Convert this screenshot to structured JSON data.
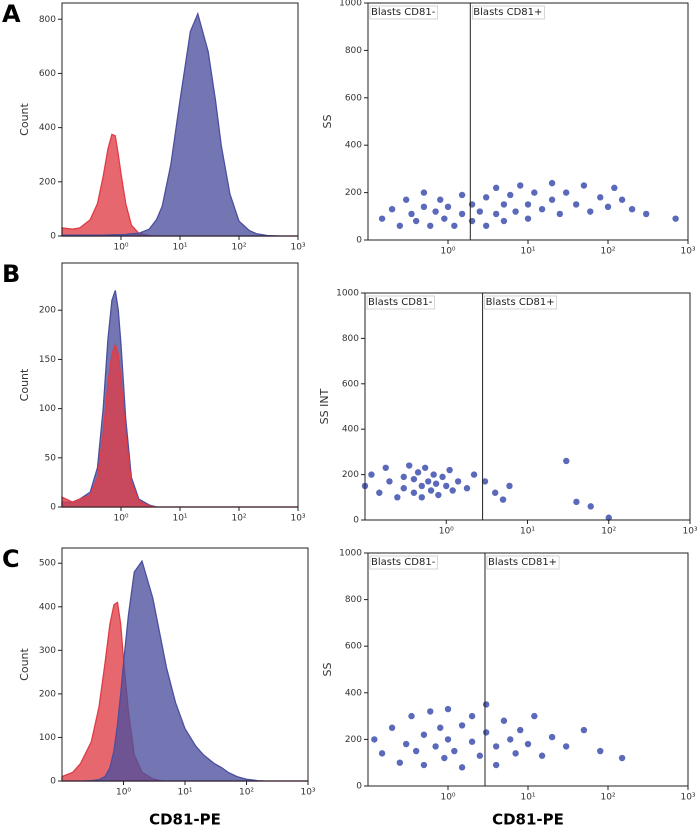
{
  "chart_data": [
    {
      "type": "histogram",
      "panel": "A",
      "y_label": "Count",
      "log_x": true,
      "xlim": [
        0.1,
        1000
      ],
      "xticks": [
        {
          "value": 1,
          "label": "10⁰"
        },
        {
          "value": 10,
          "label": "10¹"
        },
        {
          "value": 100,
          "label": "10²"
        },
        {
          "value": 1000,
          "label": "10³"
        }
      ],
      "ylim": [
        0,
        860
      ],
      "yticks": [
        0,
        200,
        400,
        600,
        800
      ],
      "x": [
        0.1,
        0.15,
        0.2,
        0.3,
        0.4,
        0.5,
        0.6,
        0.7,
        0.8,
        0.9,
        1,
        1.2,
        1.5,
        2,
        3,
        4,
        5,
        7,
        10,
        15,
        20,
        30,
        40,
        50,
        70,
        100,
        150,
        200,
        300,
        500,
        1000
      ],
      "series": [
        {
          "color": "#e03c46",
          "values": [
            30,
            25,
            30,
            60,
            120,
            220,
            320,
            375,
            370,
            300,
            230,
            120,
            40,
            10,
            2,
            0,
            0,
            0,
            0,
            0,
            0,
            0,
            0,
            0,
            0,
            0,
            0,
            0,
            0,
            0,
            0
          ]
        },
        {
          "color": "#4b4f9e",
          "values": [
            3,
            3,
            3,
            3,
            3,
            3,
            4,
            4,
            5,
            5,
            5,
            6,
            8,
            10,
            25,
            60,
            110,
            265,
            500,
            755,
            820,
            680,
            500,
            335,
            155,
            55,
            20,
            8,
            2,
            0,
            0
          ]
        }
      ]
    },
    {
      "type": "scatter",
      "y_label": "SS",
      "log_x": true,
      "color": "#3d4fae",
      "xlim": [
        0.1,
        1000
      ],
      "xticks": [
        {
          "value": 1,
          "label": "10⁰"
        },
        {
          "value": 10,
          "label": "10¹"
        },
        {
          "value": 100,
          "label": "10²"
        },
        {
          "value": 1000,
          "label": "10³"
        }
      ],
      "ylim": [
        0,
        1000
      ],
      "yticks": [
        0,
        200,
        400,
        600,
        800,
        1000
      ],
      "gate": 1.9,
      "gate_labels": [
        "Blasts CD81-",
        "Blasts CD81+"
      ],
      "x": [
        0.15,
        0.2,
        0.25,
        0.3,
        0.35,
        0.4,
        0.5,
        0.5,
        0.6,
        0.7,
        0.8,
        0.9,
        1,
        1.2,
        1.5,
        1.5,
        2,
        2,
        2.5,
        3,
        3,
        4,
        4,
        5,
        5,
        6,
        7,
        8,
        10,
        10,
        12,
        15,
        20,
        20,
        25,
        30,
        40,
        50,
        60,
        80,
        100,
        120,
        150,
        200,
        300,
        700
      ],
      "values": [
        90,
        130,
        60,
        170,
        110,
        80,
        140,
        200,
        60,
        120,
        170,
        90,
        140,
        60,
        110,
        190,
        80,
        150,
        120,
        60,
        180,
        110,
        220,
        150,
        80,
        190,
        120,
        230,
        150,
        90,
        200,
        130,
        170,
        240,
        110,
        200,
        150,
        230,
        120,
        180,
        140,
        220,
        170,
        130,
        110,
        90
      ]
    },
    {
      "type": "histogram",
      "panel": "B",
      "y_label": "Count",
      "log_x": true,
      "xlim": [
        0.1,
        1000
      ],
      "xticks": [
        {
          "value": 1,
          "label": "10⁰"
        },
        {
          "value": 10,
          "label": "10¹"
        },
        {
          "value": 100,
          "label": "10²"
        },
        {
          "value": 1000,
          "label": "10³"
        }
      ],
      "ylim": [
        0,
        248
      ],
      "yticks": [
        0,
        50,
        100,
        150,
        200
      ],
      "x": [
        0.1,
        0.15,
        0.2,
        0.3,
        0.4,
        0.5,
        0.6,
        0.7,
        0.8,
        0.9,
        1,
        1.2,
        1.5,
        2,
        3,
        4,
        5,
        7,
        10,
        15,
        20,
        30,
        40,
        50,
        70,
        100,
        150,
        200,
        300,
        500,
        1000
      ],
      "series": [
        {
          "color": "#4b4f9e",
          "values": [
            5,
            5,
            8,
            15,
            40,
            100,
            170,
            210,
            220,
            200,
            165,
            90,
            30,
            8,
            2,
            0,
            0,
            0,
            0,
            0,
            0,
            0,
            0,
            0,
            0,
            0,
            0,
            0,
            0,
            0,
            0
          ]
        },
        {
          "color": "#e03c46",
          "values": [
            10,
            5,
            8,
            12,
            30,
            75,
            125,
            155,
            165,
            155,
            130,
            75,
            25,
            6,
            1,
            0,
            0,
            0,
            0,
            0,
            0,
            0,
            0,
            0,
            0,
            0,
            0,
            0,
            0,
            0,
            0
          ]
        }
      ]
    },
    {
      "type": "scatter",
      "y_label": "SS INT",
      "log_x": true,
      "color": "#3d4fae",
      "xlim": [
        0.1,
        1000
      ],
      "xticks": [
        {
          "value": 1,
          "label": "10⁰"
        },
        {
          "value": 10,
          "label": "10¹"
        },
        {
          "value": 100,
          "label": "10²"
        },
        {
          "value": 1000,
          "label": "10³"
        }
      ],
      "ylim": [
        0,
        1000
      ],
      "yticks": [
        0,
        200,
        400,
        600,
        800,
        1000
      ],
      "gate": 2.8,
      "gate_labels": [
        "Blasts CD81-",
        "Blasts CD81+"
      ],
      "x": [
        0.1,
        0.12,
        0.15,
        0.18,
        0.2,
        0.25,
        0.3,
        0.3,
        0.35,
        0.4,
        0.4,
        0.45,
        0.5,
        0.5,
        0.55,
        0.6,
        0.65,
        0.7,
        0.75,
        0.8,
        0.9,
        1,
        1.1,
        1.2,
        1.4,
        1.8,
        2.2,
        3,
        4,
        5,
        6,
        30,
        40,
        60,
        100
      ],
      "values": [
        150,
        200,
        120,
        230,
        170,
        100,
        190,
        140,
        240,
        120,
        180,
        210,
        150,
        100,
        230,
        170,
        130,
        200,
        160,
        110,
        190,
        150,
        220,
        130,
        170,
        140,
        200,
        170,
        120,
        90,
        150,
        260,
        80,
        60,
        10
      ]
    },
    {
      "type": "histogram",
      "panel": "C",
      "y_label": "Count",
      "x_label": "CD81-PE",
      "log_x": true,
      "xlim": [
        0.1,
        1000
      ],
      "xticks": [
        {
          "value": 1,
          "label": "10⁰"
        },
        {
          "value": 10,
          "label": "10¹"
        },
        {
          "value": 100,
          "label": "10²"
        },
        {
          "value": 1000,
          "label": "10³"
        }
      ],
      "ylim": [
        0,
        535
      ],
      "yticks": [
        0,
        100,
        200,
        300,
        400,
        500
      ],
      "x": [
        0.1,
        0.15,
        0.2,
        0.3,
        0.4,
        0.5,
        0.6,
        0.7,
        0.8,
        0.9,
        1,
        1.2,
        1.5,
        2,
        3,
        4,
        5,
        7,
        10,
        15,
        20,
        30,
        40,
        50,
        70,
        100,
        150,
        200,
        300,
        500,
        1000
      ],
      "series": [
        {
          "color": "#e03c46",
          "values": [
            10,
            20,
            40,
            90,
            170,
            270,
            360,
            405,
            410,
            360,
            280,
            160,
            60,
            20,
            5,
            1,
            0,
            0,
            0,
            0,
            0,
            0,
            0,
            0,
            0,
            0,
            0,
            0,
            0,
            0,
            0
          ]
        },
        {
          "color": "#4b4f9e",
          "values": [
            0,
            0,
            0,
            1,
            3,
            10,
            30,
            70,
            130,
            200,
            270,
            380,
            480,
            505,
            420,
            330,
            260,
            180,
            120,
            80,
            60,
            40,
            30,
            20,
            10,
            4,
            1,
            0,
            0,
            0,
            0
          ]
        }
      ]
    },
    {
      "type": "scatter",
      "y_label": "SS",
      "x_label": "CD81-PE",
      "log_x": true,
      "color": "#3d4fae",
      "xlim": [
        0.1,
        1000
      ],
      "xticks": [
        {
          "value": 1,
          "label": "10⁰"
        },
        {
          "value": 10,
          "label": "10¹"
        },
        {
          "value": 100,
          "label": "10²"
        },
        {
          "value": 1000,
          "label": "10³"
        }
      ],
      "ylim": [
        0,
        1000
      ],
      "yticks": [
        0,
        200,
        400,
        600,
        800,
        1000
      ],
      "gate": 2.9,
      "gate_labels": [
        "Blasts CD81-",
        "Blasts CD81+"
      ],
      "x": [
        0.12,
        0.15,
        0.2,
        0.25,
        0.3,
        0.35,
        0.4,
        0.5,
        0.5,
        0.6,
        0.7,
        0.8,
        0.9,
        1,
        1,
        1.2,
        1.5,
        1.5,
        2,
        2,
        2.5,
        3,
        3,
        4,
        4,
        5,
        6,
        7,
        8,
        10,
        12,
        15,
        20,
        30,
        50,
        80,
        150
      ],
      "values": [
        200,
        140,
        250,
        100,
        180,
        300,
        150,
        220,
        90,
        320,
        170,
        250,
        120,
        200,
        330,
        150,
        260,
        80,
        190,
        300,
        130,
        230,
        350,
        170,
        90,
        280,
        200,
        140,
        240,
        180,
        300,
        130,
        210,
        170,
        240,
        150,
        120
      ]
    }
  ]
}
